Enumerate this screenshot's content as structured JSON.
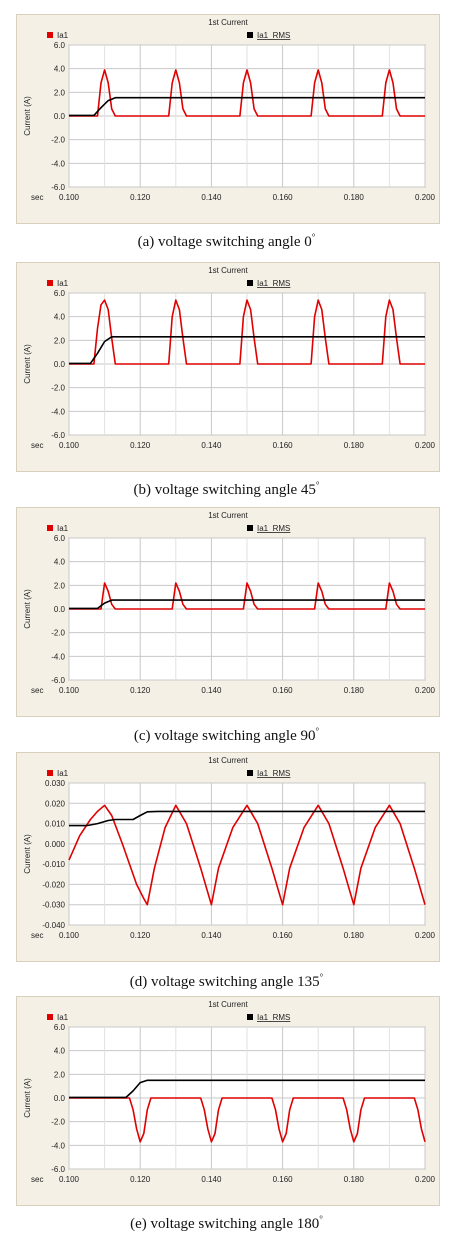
{
  "chart_data": [
    {
      "type": "line",
      "caption": "(a) voltage switching angle 0",
      "caption_degree": "°",
      "title": "1st Current",
      "ylabel": "Current (A)",
      "xlabel": "sec",
      "xlim": [
        0.1,
        0.2
      ],
      "ylim": [
        -6.0,
        6.0
      ],
      "xticks": [
        "0.100",
        "0.120",
        "0.140",
        "0.160",
        "0.180",
        "0.200"
      ],
      "yticks": [
        "6.0",
        "4.0",
        "2.0",
        "0.0",
        "-2.0",
        "-4.0",
        "-6.0"
      ],
      "grid": true,
      "legend_placement": "top",
      "series": [
        {
          "name": "Ia1",
          "color": "#e00000",
          "x": [
            0.1,
            0.108,
            0.109,
            0.11,
            0.111,
            0.112,
            0.113,
            0.128,
            0.129,
            0.13,
            0.131,
            0.132,
            0.133,
            0.148,
            0.149,
            0.15,
            0.151,
            0.152,
            0.153,
            0.168,
            0.169,
            0.17,
            0.171,
            0.172,
            0.173,
            0.188,
            0.189,
            0.19,
            0.191,
            0.192,
            0.193,
            0.2
          ],
          "y": [
            0,
            0,
            2.8,
            3.9,
            2.8,
            0.6,
            0,
            0,
            2.8,
            3.9,
            2.8,
            0.6,
            0,
            0,
            2.8,
            3.9,
            2.8,
            0.6,
            0,
            0,
            2.8,
            3.9,
            2.8,
            0.6,
            0,
            0,
            2.8,
            3.9,
            2.8,
            0.6,
            0,
            0
          ]
        },
        {
          "name": "Ia1_RMS",
          "color": "#000000",
          "x": [
            0.1,
            0.107,
            0.109,
            0.111,
            0.113,
            0.2
          ],
          "y": [
            0.05,
            0.05,
            0.7,
            1.3,
            1.55,
            1.55
          ]
        }
      ]
    },
    {
      "type": "line",
      "caption": "(b) voltage switching angle 45",
      "caption_degree": "°",
      "title": "1st Current",
      "ylabel": "Current (A)",
      "xlabel": "sec",
      "xlim": [
        0.1,
        0.2
      ],
      "ylim": [
        -6.0,
        6.0
      ],
      "xticks": [
        "0.100",
        "0.120",
        "0.140",
        "0.160",
        "0.180",
        "0.200"
      ],
      "yticks": [
        "6.0",
        "4.0",
        "2.0",
        "0.0",
        "-2.0",
        "-4.0",
        "-6.0"
      ],
      "grid": true,
      "legend_placement": "top",
      "series": [
        {
          "name": "Ia1",
          "color": "#e00000",
          "x": [
            0.1,
            0.107,
            0.108,
            0.109,
            0.11,
            0.111,
            0.112,
            0.113,
            0.128,
            0.129,
            0.13,
            0.131,
            0.132,
            0.133,
            0.148,
            0.149,
            0.15,
            0.151,
            0.152,
            0.153,
            0.168,
            0.169,
            0.17,
            0.171,
            0.172,
            0.173,
            0.188,
            0.189,
            0.19,
            0.191,
            0.192,
            0.193,
            0.2
          ],
          "y": [
            0,
            0,
            3.0,
            5.0,
            5.4,
            4.6,
            2.2,
            0,
            0,
            4.0,
            5.4,
            4.6,
            2.2,
            0,
            0,
            4.0,
            5.4,
            4.6,
            2.2,
            0,
            0,
            4.0,
            5.4,
            4.6,
            2.2,
            0,
            0,
            4.0,
            5.4,
            4.6,
            2.2,
            0,
            0
          ]
        },
        {
          "name": "Ia1_RMS",
          "color": "#000000",
          "x": [
            0.1,
            0.106,
            0.108,
            0.11,
            0.112,
            0.2
          ],
          "y": [
            0.05,
            0.05,
            0.9,
            1.9,
            2.3,
            2.3
          ]
        }
      ]
    },
    {
      "type": "line",
      "caption": "(c) voltage switching angle 90",
      "caption_degree": "°",
      "title": "1st Current",
      "ylabel": "Current (A)",
      "xlabel": "sec",
      "xlim": [
        0.1,
        0.2
      ],
      "ylim": [
        -6.0,
        6.0
      ],
      "xticks": [
        "0.100",
        "0.120",
        "0.140",
        "0.160",
        "0.180",
        "0.200"
      ],
      "yticks": [
        "6.0",
        "4.0",
        "2.0",
        "0.0",
        "-2.0",
        "-4.0",
        "-6.0"
      ],
      "grid": true,
      "legend_placement": "top",
      "series": [
        {
          "name": "Ia1",
          "color": "#e00000",
          "x": [
            0.1,
            0.109,
            0.11,
            0.111,
            0.112,
            0.113,
            0.129,
            0.13,
            0.131,
            0.132,
            0.133,
            0.149,
            0.15,
            0.151,
            0.152,
            0.153,
            0.169,
            0.17,
            0.171,
            0.172,
            0.173,
            0.189,
            0.19,
            0.191,
            0.192,
            0.193,
            0.2
          ],
          "y": [
            0,
            0,
            2.2,
            1.5,
            0.4,
            0,
            0,
            2.2,
            1.5,
            0.4,
            0,
            0,
            2.2,
            1.5,
            0.4,
            0,
            0,
            2.2,
            1.5,
            0.4,
            0,
            0,
            2.2,
            1.5,
            0.4,
            0,
            0
          ]
        },
        {
          "name": "Ia1_RMS",
          "color": "#000000",
          "x": [
            0.1,
            0.108,
            0.11,
            0.112,
            0.2
          ],
          "y": [
            0.05,
            0.05,
            0.5,
            0.75,
            0.75
          ]
        }
      ]
    },
    {
      "type": "line",
      "caption": "(d) voltage switching angle 135",
      "caption_degree": "°",
      "title": "1st Current",
      "ylabel": "Current (A)",
      "xlabel": "sec",
      "xlim": [
        0.1,
        0.2
      ],
      "ylim": [
        -0.04,
        0.03
      ],
      "xticks": [
        "0.100",
        "0.120",
        "0.140",
        "0.160",
        "0.180",
        "0.200"
      ],
      "yticks": [
        "0.030",
        "0.020",
        "0.010",
        "0.000",
        "-0.010",
        "-0.020",
        "-0.030",
        "-0.040"
      ],
      "grid": true,
      "legend_placement": "top",
      "series": [
        {
          "name": "Ia1",
          "color": "#e00000",
          "x": [
            0.1,
            0.103,
            0.106,
            0.108,
            0.11,
            0.112,
            0.115,
            0.119,
            0.121,
            0.122,
            0.124,
            0.127,
            0.13,
            0.133,
            0.137,
            0.139,
            0.14,
            0.142,
            0.146,
            0.15,
            0.153,
            0.157,
            0.159,
            0.16,
            0.162,
            0.166,
            0.17,
            0.173,
            0.177,
            0.179,
            0.18,
            0.182,
            0.186,
            0.19,
            0.193,
            0.197,
            0.2
          ],
          "y": [
            -0.008,
            0.004,
            0.012,
            0.016,
            0.019,
            0.014,
            0.0,
            -0.02,
            -0.027,
            -0.03,
            -0.012,
            0.008,
            0.019,
            0.01,
            -0.012,
            -0.024,
            -0.03,
            -0.012,
            0.008,
            0.019,
            0.01,
            -0.012,
            -0.024,
            -0.03,
            -0.012,
            0.008,
            0.019,
            0.01,
            -0.012,
            -0.024,
            -0.03,
            -0.012,
            0.008,
            0.019,
            0.01,
            -0.012,
            -0.03
          ]
        },
        {
          "name": "Ia1_RMS",
          "color": "#000000",
          "x": [
            0.1,
            0.105,
            0.108,
            0.111,
            0.113,
            0.118,
            0.12,
            0.122,
            0.125,
            0.2
          ],
          "y": [
            0.009,
            0.009,
            0.01,
            0.0115,
            0.012,
            0.012,
            0.014,
            0.0158,
            0.016,
            0.016
          ]
        }
      ]
    },
    {
      "type": "line",
      "caption": "(e) voltage switching angle 180",
      "caption_degree": "°",
      "title": "1st Current",
      "ylabel": "Current (A)",
      "xlabel": "sec",
      "xlim": [
        0.1,
        0.2
      ],
      "ylim": [
        -6.0,
        6.0
      ],
      "xticks": [
        "0.100",
        "0.120",
        "0.140",
        "0.160",
        "0.180",
        "0.200"
      ],
      "yticks": [
        "6.0",
        "4.0",
        "2.0",
        "0.0",
        "-2.0",
        "-4.0",
        "-6.0"
      ],
      "grid": true,
      "legend_placement": "top",
      "series": [
        {
          "name": "Ia1",
          "color": "#e00000",
          "x": [
            0.1,
            0.117,
            0.118,
            0.119,
            0.12,
            0.121,
            0.122,
            0.123,
            0.137,
            0.138,
            0.139,
            0.14,
            0.141,
            0.142,
            0.143,
            0.157,
            0.158,
            0.159,
            0.16,
            0.161,
            0.162,
            0.163,
            0.177,
            0.178,
            0.179,
            0.18,
            0.181,
            0.182,
            0.183,
            0.197,
            0.198,
            0.199,
            0.2
          ],
          "y": [
            0,
            0,
            -1.0,
            -2.6,
            -3.7,
            -3.0,
            -1.0,
            0,
            0,
            -1.0,
            -2.6,
            -3.7,
            -3.0,
            -1.0,
            0,
            0,
            -1.0,
            -2.6,
            -3.7,
            -3.0,
            -1.0,
            0,
            0,
            -1.0,
            -2.6,
            -3.7,
            -3.0,
            -1.0,
            0,
            0,
            -1.0,
            -2.6,
            -3.7
          ]
        },
        {
          "name": "Ia1_RMS",
          "color": "#000000",
          "x": [
            0.1,
            0.116,
            0.118,
            0.12,
            0.122,
            0.2
          ],
          "y": [
            0.05,
            0.05,
            0.6,
            1.3,
            1.5,
            1.5
          ]
        }
      ]
    }
  ]
}
